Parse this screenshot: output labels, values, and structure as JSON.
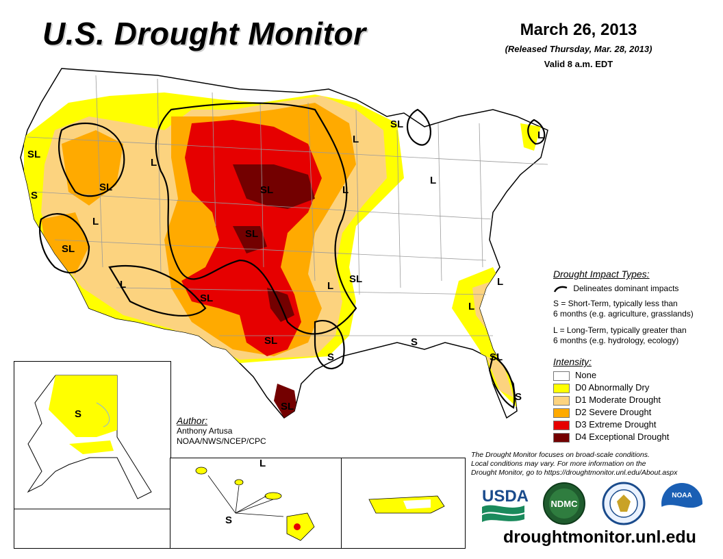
{
  "header": {
    "title": "U.S. Drought Monitor",
    "date": "March 26, 2013",
    "released": "(Released Thursday, Mar. 28, 2013)",
    "valid": "Valid 8 a.m. EDT"
  },
  "map_labels": [
    "SL",
    "S",
    "L"
  ],
  "impact_types": {
    "title": "Drought Impact Types:",
    "delineates": "Delineates dominant impacts",
    "short_term": "S = Short-Term, typically less than",
    "short_term_2": "6 months (e.g. agriculture, grasslands)",
    "long_term": "L = Long-Term, typically greater than",
    "long_term_2": "6 months (e.g. hydrology, ecology)"
  },
  "intensity": {
    "title": "Intensity:",
    "items": [
      {
        "label": "None",
        "color": "#ffffff"
      },
      {
        "label": "D0 Abnormally Dry",
        "color": "#ffff00"
      },
      {
        "label": "D1 Moderate Drought",
        "color": "#fcd37f"
      },
      {
        "label": "D2 Severe Drought",
        "color": "#ffaa00"
      },
      {
        "label": "D3 Extreme Drought",
        "color": "#e60000"
      },
      {
        "label": "D4 Exceptional Drought",
        "color": "#730000"
      }
    ]
  },
  "author": {
    "heading": "Author:",
    "name": "Anthony Artusa",
    "org": "NOAA/NWS/NCEP/CPC"
  },
  "note": {
    "line1": "The Drought Monitor focuses on broad-scale conditions.",
    "line2": "Local conditions may vary. For more information on the",
    "line3": "Drought Monitor, go to https://droughtmonitor.unl.edu/About.aspx"
  },
  "logos": {
    "usda": "USDA",
    "ndmc": "NDMC",
    "noaa": "NOAA"
  },
  "footer": {
    "url": "droughtmonitor.unl.edu"
  }
}
